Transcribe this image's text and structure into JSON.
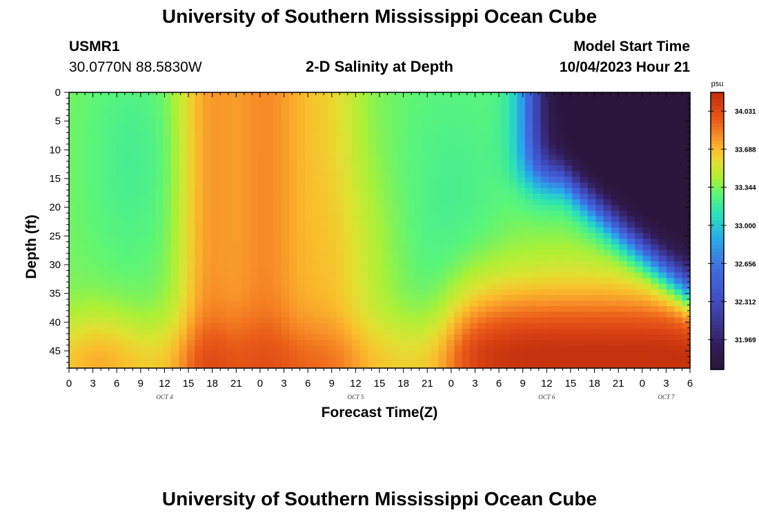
{
  "header": {
    "title": "University of Southern Mississippi Ocean Cube",
    "station_id": "USMR1",
    "coords": "30.0770N  88.5830W",
    "plot_title": "2-D Salinity at Depth",
    "model_start_label": "Model Start Time",
    "model_start_value": "10/04/2023 Hour 21"
  },
  "footer": {
    "title": "University of Southern Mississippi Ocean Cube"
  },
  "chart_data": {
    "type": "heatmap",
    "title": "2-D Salinity at Depth",
    "xlabel": "Forecast Time(Z)",
    "ylabel": "Depth (ft)",
    "x_tick_labels": [
      "0",
      "3",
      "6",
      "9",
      "12",
      "15",
      "18",
      "21",
      "0",
      "3",
      "6",
      "9",
      "12",
      "15",
      "18",
      "21",
      "0",
      "3",
      "6",
      "9",
      "12",
      "15",
      "18",
      "21",
      "0",
      "3",
      "6"
    ],
    "day_labels": [
      {
        "label": "OCT 4",
        "tick_index": 4
      },
      {
        "label": "OCT 5",
        "tick_index": 12
      },
      {
        "label": "OCT 6",
        "tick_index": 20
      },
      {
        "label": "OCT 7",
        "tick_index": 25
      }
    ],
    "x_range_hours": [
      0,
      78
    ],
    "y_range_ft": [
      0,
      48
    ],
    "y_ticks": [
      0,
      5,
      10,
      15,
      20,
      25,
      30,
      35,
      40,
      45
    ],
    "colorbar": {
      "unit": "psu",
      "min": 31.7,
      "max": 34.2,
      "tick_values": [
        34.031,
        33.688,
        33.344,
        33.0,
        32.656,
        32.312,
        31.969
      ],
      "tick_labels": [
        "34.031",
        "33.688",
        "33.344",
        "33.000",
        "32.656",
        "32.312",
        "31.969"
      ]
    },
    "grid_columns": 79,
    "grid_rows": 49,
    "field_model": "approximate salinity (psu) vs forecast hour and depth, estimated from the color field"
  }
}
